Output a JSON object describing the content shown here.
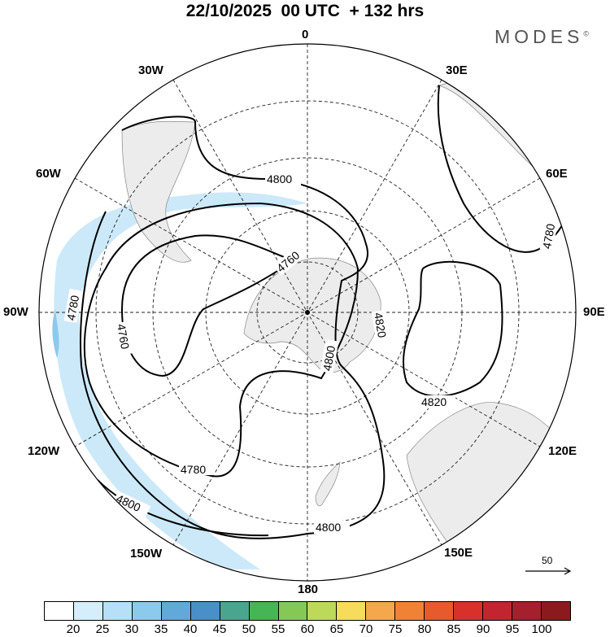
{
  "header": {
    "title": "22/10/2025  00 UTC  + 132 hrs",
    "brand": "MODES",
    "brand_mark": "©"
  },
  "map": {
    "projection": "south-polar-stereographic",
    "longitude_labels": [
      "0",
      "30E",
      "60E",
      "90E",
      "120E",
      "150E",
      "180",
      "150W",
      "120W",
      "90W",
      "60W",
      "30W"
    ],
    "contour_labels": [
      "4800",
      "4760",
      "4780",
      "4760",
      "4780",
      "4800",
      "4800",
      "4820",
      "4820",
      "4780",
      "4800"
    ],
    "ocean_color": "#ffffff",
    "land_color": "#ececec",
    "wind_shading_color": "#c6e7f8"
  },
  "vector_key": {
    "label": "50"
  },
  "colorbar": {
    "labels": [
      "20",
      "25",
      "30",
      "35",
      "40",
      "45",
      "50",
      "55",
      "60",
      "65",
      "70",
      "75",
      "80",
      "85",
      "90",
      "95",
      "100"
    ],
    "colors": [
      "#ffffff",
      "#d4eefb",
      "#b5e0f7",
      "#8ccaec",
      "#62a8d9",
      "#4a8fc8",
      "#4aa58e",
      "#45b556",
      "#84c855",
      "#bcd95a",
      "#f6dc5c",
      "#f5a84b",
      "#f08235",
      "#e65a2c",
      "#d8302b",
      "#c22530",
      "#a51f2d",
      "#8b1a1f"
    ]
  }
}
